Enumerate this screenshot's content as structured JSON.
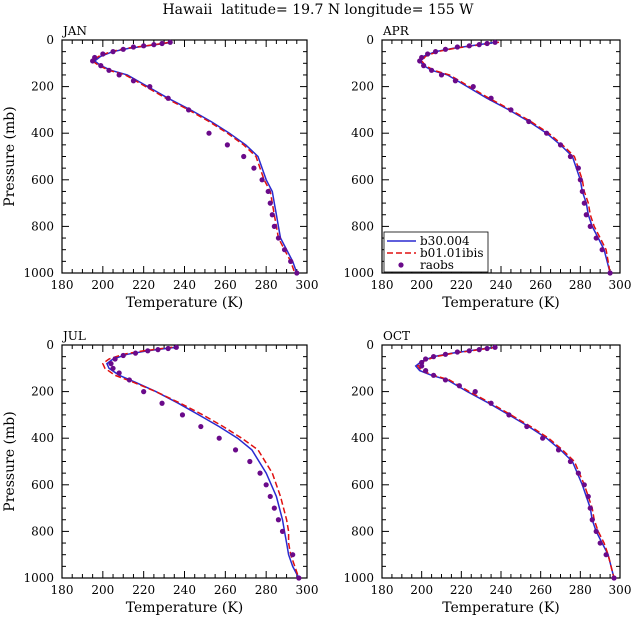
{
  "figure": {
    "title": "Hawaii  latitude= 19.7 N longitude= 155 W"
  },
  "colors": {
    "b30": "#2a2ad0",
    "ibis": "#e01010",
    "raobs": "#6a0a8a"
  },
  "legend": {
    "items": [
      {
        "label": "b30.004",
        "style": "solid",
        "color": "#2a2ad0"
      },
      {
        "label": "b01.01ibis",
        "style": "dashed",
        "color": "#e01010"
      },
      {
        "label": "raobs",
        "style": "dot",
        "color": "#6a0a8a"
      }
    ]
  },
  "chart_data": [
    {
      "type": "line",
      "panel_label": "JAN",
      "xlabel": "Temperature (K)",
      "ylabel": "Pressure (mb)",
      "xlim": [
        180,
        300
      ],
      "ylim": [
        1000,
        0
      ],
      "xticks": [
        180,
        200,
        220,
        240,
        260,
        280,
        300
      ],
      "yticks": [
        0,
        200,
        400,
        600,
        800,
        1000
      ],
      "series": [
        {
          "name": "b30.004",
          "style": "solid",
          "x": [
            234,
            230,
            222,
            213,
            205,
            199,
            196,
            199,
            204,
            212,
            222,
            232,
            243,
            253,
            262,
            270,
            276,
            280,
            283,
            284,
            285,
            286,
            287,
            290,
            293,
            295
          ],
          "y": [
            10,
            15,
            25,
            35,
            50,
            70,
            90,
            110,
            130,
            150,
            200,
            250,
            300,
            350,
            400,
            450,
            500,
            600,
            650,
            700,
            750,
            800,
            850,
            900,
            950,
            1000
          ]
        },
        {
          "name": "b01.01ibis",
          "style": "dashed",
          "x": [
            233,
            229,
            221,
            212,
            204,
            198,
            195,
            198,
            203,
            211,
            221,
            231,
            242,
            252,
            261,
            269,
            275,
            279,
            282,
            283,
            284,
            285,
            286,
            289,
            292,
            294
          ],
          "y": [
            10,
            15,
            25,
            35,
            50,
            70,
            90,
            110,
            130,
            150,
            200,
            250,
            300,
            350,
            400,
            450,
            500,
            600,
            650,
            700,
            750,
            800,
            850,
            900,
            950,
            1000
          ]
        },
        {
          "name": "raobs",
          "style": "dot",
          "x": [
            233,
            229,
            225,
            220,
            215,
            210,
            205,
            200,
            196,
            195,
            199,
            203,
            208,
            215,
            223,
            232,
            242,
            252,
            261,
            269,
            274,
            278,
            281,
            282,
            283,
            284,
            286,
            289,
            292,
            295
          ],
          "y": [
            10,
            15,
            20,
            25,
            30,
            40,
            50,
            60,
            75,
            90,
            110,
            130,
            150,
            175,
            200,
            250,
            300,
            400,
            450,
            500,
            550,
            600,
            650,
            700,
            750,
            800,
            850,
            900,
            950,
            1000
          ]
        }
      ]
    },
    {
      "type": "line",
      "panel_label": "APR",
      "xlabel": "Temperature (K)",
      "ylabel": "",
      "xlim": [
        180,
        300
      ],
      "ylim": [
        1000,
        0
      ],
      "xticks": [
        180,
        200,
        220,
        240,
        260,
        280,
        300
      ],
      "yticks": [
        0,
        200,
        400,
        600,
        800,
        1000
      ],
      "series": [
        {
          "name": "b30.004",
          "style": "solid",
          "x": [
            238,
            233,
            225,
            216,
            207,
            201,
            199,
            201,
            205,
            213,
            223,
            233,
            244,
            254,
            263,
            270,
            276,
            280,
            281,
            283,
            284,
            286,
            289,
            292,
            295
          ],
          "y": [
            10,
            15,
            25,
            35,
            50,
            70,
            90,
            110,
            130,
            150,
            200,
            250,
            300,
            350,
            400,
            450,
            500,
            600,
            650,
            700,
            750,
            800,
            850,
            900,
            1000
          ]
        },
        {
          "name": "b01.01ibis",
          "style": "dashed",
          "x": [
            239,
            234,
            226,
            217,
            208,
            202,
            200,
            202,
            206,
            214,
            224,
            234,
            245,
            255,
            264,
            271,
            277,
            281,
            282,
            284,
            285,
            287,
            290,
            293,
            295
          ],
          "y": [
            10,
            15,
            25,
            35,
            50,
            70,
            90,
            110,
            130,
            150,
            200,
            250,
            300,
            350,
            400,
            450,
            500,
            600,
            650,
            700,
            750,
            800,
            850,
            900,
            1000
          ]
        },
        {
          "name": "raobs",
          "style": "dot",
          "x": [
            237,
            233,
            229,
            224,
            218,
            212,
            207,
            203,
            200,
            199,
            201,
            205,
            210,
            217,
            226,
            235,
            245,
            254,
            263,
            270,
            275,
            279,
            280,
            281,
            282,
            283,
            285,
            288,
            291,
            295
          ],
          "y": [
            10,
            15,
            20,
            25,
            30,
            40,
            50,
            60,
            75,
            90,
            110,
            130,
            150,
            175,
            200,
            250,
            300,
            350,
            400,
            450,
            500,
            550,
            600,
            650,
            700,
            750,
            800,
            850,
            900,
            1000
          ]
        }
      ]
    },
    {
      "type": "line",
      "panel_label": "JUL",
      "xlabel": "Temperature (K)",
      "ylabel": "Pressure (mb)",
      "xlim": [
        180,
        300
      ],
      "ylim": [
        1000,
        0
      ],
      "xticks": [
        180,
        200,
        220,
        240,
        260,
        280,
        300
      ],
      "yticks": [
        0,
        200,
        400,
        600,
        800,
        1000
      ],
      "series": [
        {
          "name": "b30.004",
          "style": "solid",
          "x": [
            236,
            231,
            222,
            212,
            205,
            202,
            203,
            208,
            216,
            226,
            237,
            247,
            257,
            266,
            273,
            280,
            285,
            288,
            289,
            290,
            291,
            293,
            296
          ],
          "y": [
            10,
            15,
            25,
            40,
            60,
            80,
            100,
            130,
            160,
            200,
            250,
            300,
            350,
            400,
            450,
            550,
            650,
            750,
            800,
            850,
            900,
            950,
            1000
          ]
        },
        {
          "name": "b01.01ibis",
          "style": "dashed",
          "x": [
            234,
            229,
            220,
            210,
            203,
            200,
            201,
            206,
            215,
            226,
            238,
            249,
            259,
            268,
            276,
            283,
            287,
            290,
            291,
            291,
            292,
            294,
            296
          ],
          "y": [
            10,
            15,
            25,
            40,
            60,
            80,
            100,
            130,
            160,
            200,
            250,
            300,
            350,
            400,
            450,
            550,
            650,
            750,
            800,
            850,
            900,
            950,
            1000
          ]
        },
        {
          "name": "raobs",
          "style": "dot",
          "x": [
            236,
            232,
            227,
            222,
            216,
            210,
            206,
            204,
            205,
            208,
            213,
            220,
            229,
            239,
            248,
            257,
            265,
            272,
            277,
            280,
            282,
            284,
            286,
            288,
            293,
            296
          ],
          "y": [
            10,
            15,
            20,
            25,
            35,
            45,
            60,
            80,
            100,
            120,
            150,
            200,
            250,
            300,
            350,
            400,
            450,
            500,
            550,
            600,
            650,
            700,
            750,
            800,
            900,
            1000
          ]
        }
      ]
    },
    {
      "type": "line",
      "panel_label": "OCT",
      "xlabel": "Temperature (K)",
      "ylabel": "",
      "xlim": [
        180,
        300
      ],
      "ylim": [
        1000,
        0
      ],
      "xticks": [
        180,
        200,
        220,
        240,
        260,
        280,
        300
      ],
      "yticks": [
        0,
        200,
        400,
        600,
        800,
        1000
      ],
      "series": [
        {
          "name": "b30.004",
          "style": "solid",
          "x": [
            237,
            232,
            224,
            215,
            206,
            200,
            197,
            199,
            205,
            213,
            223,
            234,
            244,
            254,
            263,
            270,
            276,
            281,
            283,
            285,
            286,
            288,
            291,
            294,
            297
          ],
          "y": [
            10,
            15,
            25,
            35,
            50,
            70,
            90,
            110,
            130,
            150,
            200,
            250,
            300,
            350,
            400,
            450,
            500,
            600,
            650,
            700,
            750,
            800,
            850,
            900,
            1000
          ]
        },
        {
          "name": "b01.01ibis",
          "style": "dashed",
          "x": [
            238,
            233,
            225,
            216,
            207,
            201,
            198,
            200,
            206,
            214,
            224,
            235,
            245,
            255,
            264,
            271,
            277,
            282,
            284,
            286,
            287,
            289,
            292,
            294,
            297
          ],
          "y": [
            10,
            15,
            25,
            35,
            50,
            70,
            90,
            110,
            130,
            150,
            200,
            250,
            300,
            350,
            400,
            450,
            500,
            600,
            650,
            700,
            750,
            800,
            850,
            900,
            1000
          ]
        },
        {
          "name": "raobs",
          "style": "dot",
          "x": [
            237,
            233,
            229,
            224,
            218,
            212,
            206,
            202,
            200,
            200,
            202,
            206,
            212,
            219,
            227,
            235,
            244,
            253,
            261,
            269,
            275,
            279,
            282,
            284,
            285,
            286,
            288,
            290,
            293,
            297
          ],
          "y": [
            10,
            15,
            20,
            25,
            30,
            40,
            50,
            60,
            75,
            90,
            110,
            130,
            150,
            175,
            200,
            250,
            300,
            350,
            400,
            450,
            500,
            550,
            600,
            650,
            700,
            750,
            800,
            850,
            900,
            1000
          ]
        }
      ]
    }
  ]
}
